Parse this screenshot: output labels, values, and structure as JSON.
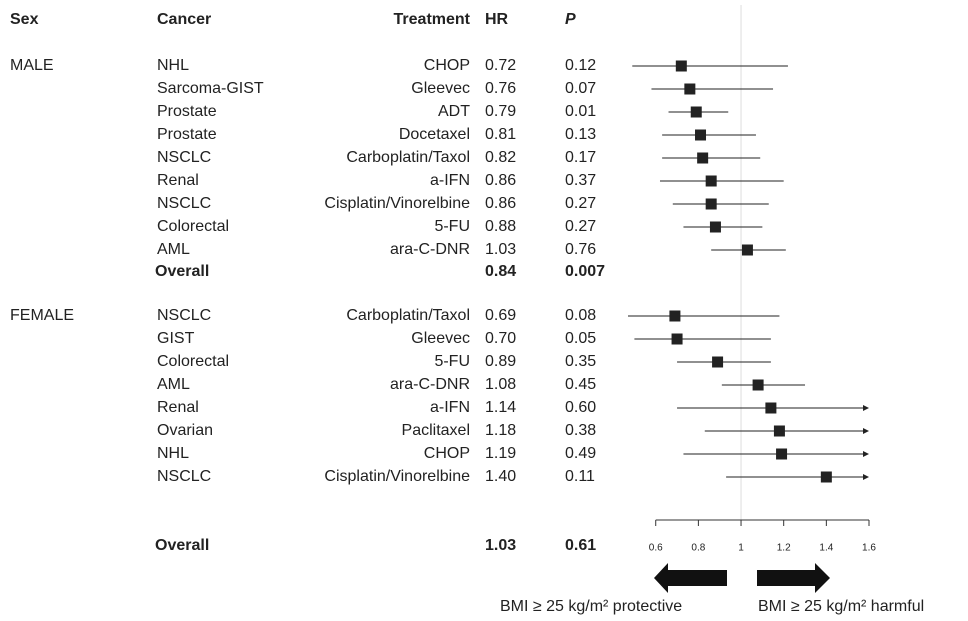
{
  "chart_data": {
    "type": "forest",
    "headers": {
      "sex": "Sex",
      "cancer": "Cancer",
      "treatment": "Treatment",
      "hr": "HR",
      "p": "P"
    },
    "xlim": [
      0.47,
      1.6
    ],
    "xticks": [
      0.6,
      0.8,
      1,
      1.2,
      1.4,
      1.6
    ],
    "reference": 1,
    "marker_color": "#222222",
    "groups": [
      {
        "name": "MALE",
        "rows": [
          {
            "cancer": "NHL",
            "treatment": "CHOP",
            "hr": 0.72,
            "p": 0.12,
            "ci": [
              0.49,
              1.22
            ]
          },
          {
            "cancer": "Sarcoma-GIST",
            "treatment": "Gleevec",
            "hr": 0.76,
            "p": 0.07,
            "ci": [
              0.58,
              1.15
            ]
          },
          {
            "cancer": "Prostate",
            "treatment": "ADT",
            "hr": 0.79,
            "p": 0.01,
            "ci": [
              0.66,
              0.94
            ]
          },
          {
            "cancer": "Prostate",
            "treatment": "Docetaxel",
            "hr": 0.81,
            "p": 0.13,
            "ci": [
              0.63,
              1.07
            ]
          },
          {
            "cancer": "NSCLC",
            "treatment": "Carboplatin/Taxol",
            "hr": 0.82,
            "p": 0.17,
            "ci": [
              0.63,
              1.09
            ]
          },
          {
            "cancer": "Renal",
            "treatment": "a-IFN",
            "hr": 0.86,
            "p": 0.37,
            "ci": [
              0.62,
              1.2
            ]
          },
          {
            "cancer": "NSCLC",
            "treatment": "Cisplatin/Vinorelbine",
            "hr": 0.86,
            "p": 0.27,
            "ci": [
              0.68,
              1.13
            ]
          },
          {
            "cancer": "Colorectal",
            "treatment": "5-FU",
            "hr": 0.88,
            "p": 0.27,
            "ci": [
              0.73,
              1.1
            ]
          },
          {
            "cancer": "AML",
            "treatment": "ara-C-DNR",
            "hr": 1.03,
            "p": 0.76,
            "ci": [
              0.86,
              1.21
            ]
          }
        ],
        "overall": {
          "label": "Overall",
          "hr": 0.84,
          "p": 0.007
        }
      },
      {
        "name": "FEMALE",
        "rows": [
          {
            "cancer": "NSCLC",
            "treatment": "Carboplatin/Taxol",
            "hr": 0.69,
            "p": 0.08,
            "ci": [
              0.47,
              1.18
            ]
          },
          {
            "cancer": "GIST",
            "treatment": "Gleevec",
            "hr": 0.7,
            "hr_label": "0.70",
            "p": 0.05,
            "ci": [
              0.5,
              1.14
            ]
          },
          {
            "cancer": "Colorectal",
            "treatment": "5-FU",
            "hr": 0.89,
            "p": 0.35,
            "ci": [
              0.7,
              1.14
            ]
          },
          {
            "cancer": "AML",
            "treatment": "ara-C-DNR",
            "hr": 1.08,
            "p": 0.45,
            "ci": [
              0.91,
              1.3
            ]
          },
          {
            "cancer": "Renal",
            "treatment": "a-IFN",
            "hr": 1.14,
            "p": 0.6,
            "p_label": "0.60",
            "ci": [
              0.7,
              null
            ]
          },
          {
            "cancer": "Ovarian",
            "treatment": "Paclitaxel",
            "hr": 1.18,
            "p": 0.38,
            "ci": [
              0.83,
              null
            ]
          },
          {
            "cancer": "NHL",
            "treatment": "CHOP",
            "hr": 1.19,
            "p": 0.49,
            "ci": [
              0.73,
              null
            ]
          },
          {
            "cancer": "NSCLC",
            "treatment": "Cisplatin/Vinorelbine",
            "hr": 1.4,
            "hr_label": "1.40",
            "p": 0.11,
            "ci": [
              0.93,
              null
            ]
          }
        ],
        "overall": {
          "label": "Overall",
          "hr": 1.03,
          "p": 0.61
        }
      }
    ],
    "direction_labels": {
      "left": "BMI ≥ 25 kg/m² protective",
      "right": "BMI ≥ 25 kg/m² harmful"
    }
  }
}
